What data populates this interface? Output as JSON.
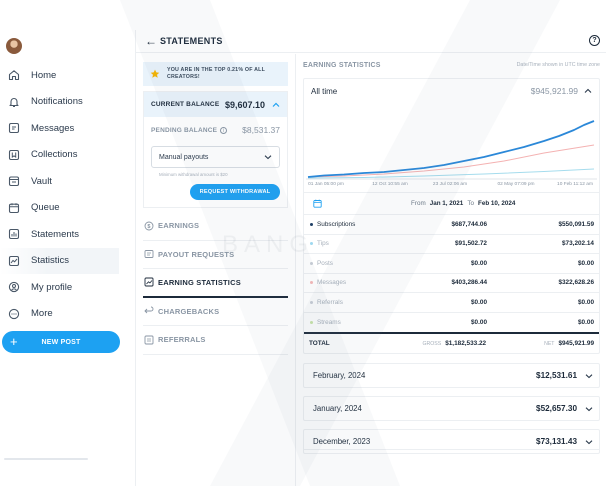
{
  "sidebar": {
    "items": [
      {
        "label": "Home",
        "icon": "home-icon"
      },
      {
        "label": "Notifications",
        "icon": "bell-icon"
      },
      {
        "label": "Messages",
        "icon": "message-icon"
      },
      {
        "label": "Collections",
        "icon": "bookmark-icon"
      },
      {
        "label": "Vault",
        "icon": "vault-icon"
      },
      {
        "label": "Queue",
        "icon": "calendar-icon"
      },
      {
        "label": "Statements",
        "icon": "statements-icon"
      },
      {
        "label": "Statistics",
        "icon": "statistics-icon"
      },
      {
        "label": "My profile",
        "icon": "profile-icon"
      },
      {
        "label": "More",
        "icon": "more-icon"
      }
    ],
    "active": "Statistics",
    "new_post_label": "NEW POST"
  },
  "header": {
    "title": "STATEMENTS",
    "help_glyph": "?"
  },
  "left": {
    "banner": "YOU ARE IN THE TOP 0.21% OF ALL CREATORS!",
    "current_balance_label": "CURRENT BALANCE",
    "current_balance_value": "$9,607.10",
    "pending_balance_label": "PENDING BALANCE",
    "pending_balance_value": "$8,531.37",
    "payout_select": "Manual payouts",
    "min_note": "Minimum withdrawal amount is $20",
    "request_button": "REQUEST WITHDRAWAL",
    "menu": [
      {
        "label": "EARNINGS",
        "icon": "dollar-icon"
      },
      {
        "label": "PAYOUT REQUESTS",
        "icon": "payout-icon"
      },
      {
        "label": "EARNING STATISTICS",
        "icon": "chart-icon"
      },
      {
        "label": "CHARGEBACKS",
        "icon": "chargeback-icon"
      },
      {
        "label": "REFERRALS",
        "icon": "referrals-icon"
      }
    ],
    "menu_active": "EARNING STATISTICS"
  },
  "stats": {
    "title": "EARNING STATISTICS",
    "note": "Date/Time shown in UTC time zone",
    "period_label": "All time",
    "period_value": "$945,921.99",
    "x_ticks": [
      "01 Jan 05:00 pm",
      "12 Oct 10:55 am",
      "23 Jul 02:06 am",
      "02 May 07:09 pm",
      "10 Feb 11:12 am"
    ],
    "date_from_label": "From",
    "date_from": "Jan 1, 2021",
    "date_to_label": "To",
    "date_to": "Feb 10, 2024",
    "rows": [
      {
        "name": "Subscriptions",
        "gross": "$687,744.06",
        "net": "$550,091.59",
        "color": "#1f3f66",
        "muted": false
      },
      {
        "name": "Tips",
        "gross": "$91,502.72",
        "net": "$73,202.14",
        "color": "#9fd8ef",
        "muted": true
      },
      {
        "name": "Posts",
        "gross": "$0.00",
        "net": "$0.00",
        "color": "#c9ced6",
        "muted": true
      },
      {
        "name": "Messages",
        "gross": "$403,286.44",
        "net": "$322,628.26",
        "color": "#f5b8b8",
        "muted": true
      },
      {
        "name": "Referrals",
        "gross": "$0.00",
        "net": "$0.00",
        "color": "#c9ced6",
        "muted": true
      },
      {
        "name": "Streams",
        "gross": "$0.00",
        "net": "$0.00",
        "color": "#c9e6a8",
        "muted": true
      }
    ],
    "total_label": "TOTAL",
    "gross_label": "GROSS",
    "total_gross": "$1,182,533.22",
    "net_label": "NET",
    "total_net": "$945,921.99"
  },
  "months": [
    {
      "label": "February, 2024",
      "value": "$12,531.61"
    },
    {
      "label": "January, 2024",
      "value": "$52,657.30"
    },
    {
      "label": "December, 2023",
      "value": "$73,131.43"
    }
  ],
  "watermark_text": "BANG",
  "colors": {
    "accent": "#1da1f2",
    "line_subscriptions": "#2b88d8",
    "line_messages": "#f4b2b2",
    "line_tips": "#a5dced"
  }
}
